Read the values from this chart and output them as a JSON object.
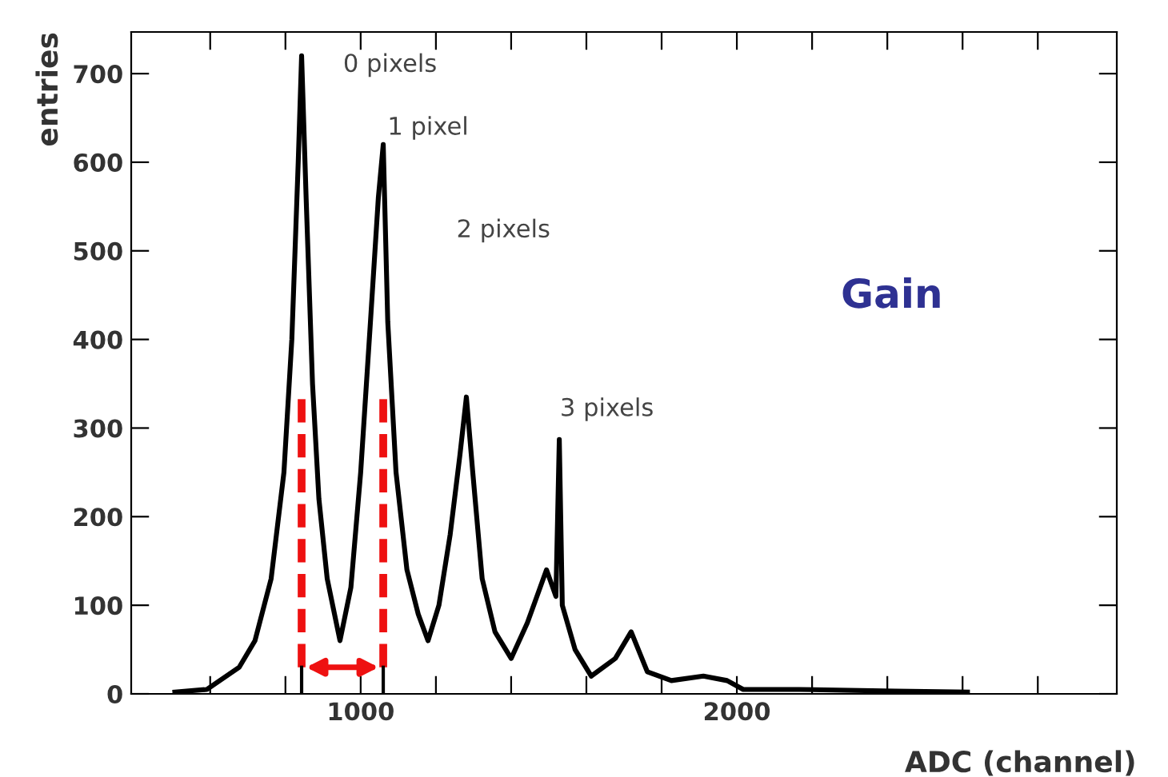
{
  "chart_data": {
    "type": "line",
    "xlabel": "ADC (channel)",
    "ylabel": "entries",
    "x": [
      506,
      591,
      677,
      719,
      762,
      796,
      817,
      834,
      843,
      855,
      872,
      889,
      911,
      945,
      974,
      1000,
      1026,
      1047,
      1060,
      1072,
      1094,
      1123,
      1153,
      1179,
      1208,
      1238,
      1264,
      1281,
      1298,
      1323,
      1357,
      1400,
      1443,
      1477,
      1494,
      1519,
      1528,
      1536,
      1570,
      1613,
      1677,
      1719,
      1762,
      1826,
      1911,
      1974,
      2017,
      2166,
      2421,
      2613
    ],
    "series": [
      {
        "color": "#000000",
        "values": [
          2,
          5,
          30,
          60,
          130,
          250,
          400,
          600,
          720,
          560,
          350,
          220,
          130,
          60,
          120,
          250,
          420,
          560,
          620,
          420,
          250,
          140,
          90,
          60,
          100,
          180,
          270,
          335,
          250,
          130,
          70,
          40,
          80,
          120,
          140,
          110,
          287,
          100,
          50,
          20,
          40,
          70,
          25,
          15,
          20,
          15,
          5,
          5,
          3,
          2
        ]
      }
    ],
    "xlim": [
      390,
      3010
    ],
    "ylim": [
      0,
      747
    ],
    "xticks": [
      {
        "value": 600,
        "label": null
      },
      {
        "value": 800,
        "label": null
      },
      1000,
      {
        "value": 1200,
        "label": null
      },
      {
        "value": 1400,
        "label": null
      },
      {
        "value": 1600,
        "label": null
      },
      {
        "value": 1800,
        "label": null
      },
      2000,
      {
        "value": 2200,
        "label": null
      },
      {
        "value": 2400,
        "label": null
      },
      {
        "value": 2600,
        "label": null
      },
      {
        "value": 2800,
        "label": null
      }
    ],
    "yticks": [
      0,
      100,
      200,
      300,
      400,
      500,
      600,
      700
    ],
    "grid": false,
    "legend": false,
    "marker": "none",
    "line_style": "solid",
    "annotations": [
      "0 pixels",
      "1 pixel",
      "2 pixels",
      "3 pixels",
      "Gain"
    ]
  }
}
